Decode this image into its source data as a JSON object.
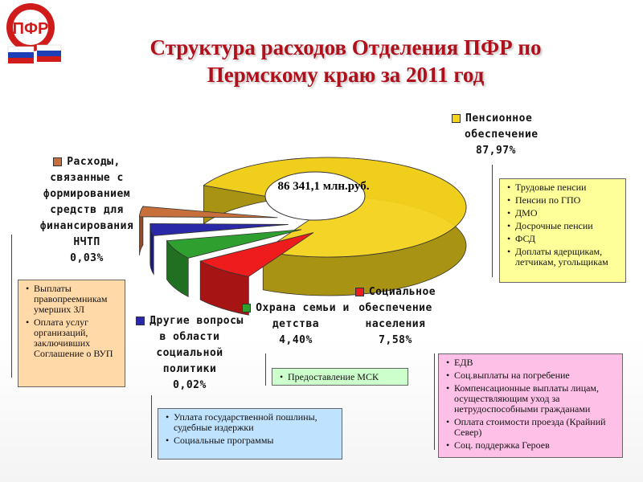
{
  "title": "Структура расходов Отделения ПФР по Пермскому краю за 2011 год",
  "logo_text": "ПФР",
  "chart_data": {
    "type": "pie",
    "total": "86 341,1 млн.руб.",
    "total_value": 86341.1,
    "unit": "млн.руб.",
    "slices": [
      {
        "name": "Пенсионное обеспечение",
        "value": 87.97,
        "value_label": "87,97%",
        "color": "#f2d21b"
      },
      {
        "name": "Социальное обеспечение населения",
        "value": 7.58,
        "value_label": "7,58%",
        "color": "#ee1c1c"
      },
      {
        "name": "Охрана семьи и детства",
        "value": 4.4,
        "value_label": "4,40%",
        "color": "#2f9f2f"
      },
      {
        "name": "Другие вопросы в области социальной политики",
        "value": 0.02,
        "value_label": "0,02%",
        "color": "#2a2aa8"
      },
      {
        "name": "Расходы, связанные с формированием средств для финансирования НЧТП",
        "value": 0.03,
        "value_label": "0,03%",
        "color": "#c8703c"
      }
    ]
  },
  "labels": {
    "pension": [
      "Пенсионное",
      "обеспечение",
      "87,97%"
    ],
    "social": [
      "Социальное",
      "обеспечение",
      "населения",
      "7,58%"
    ],
    "family": [
      "Охрана семьи и",
      "детства",
      "4,40%"
    ],
    "other": [
      "Другие вопросы",
      "в области",
      "социальной",
      "политики",
      "0,02%"
    ],
    "nchtp": [
      "Расходы,",
      "связанные с",
      "формированием",
      "средств для",
      "финансирования",
      "НЧТП",
      "0,03%"
    ]
  },
  "boxes": {
    "pension": [
      "Трудовые пенсии",
      "Пенсии по ГПО",
      "ДМО",
      "Досрочные пенсии",
      "ФСД",
      "Доплаты ядерщикам, летчикам, угольщикам"
    ],
    "social": [
      "ЕДВ",
      "Соц.выплаты на погребение",
      "Компенсационные выплаты лицам, осуществляющим уход за нетрудоспособными гражданами",
      "Оплата стоимости проезда (Крайний Север)",
      "Соц. поддержка Героев"
    ],
    "family": [
      "Предоставление МСК"
    ],
    "other": [
      "Уплата государственной пошлины, судебные издержки",
      "Социальные программы"
    ],
    "nchtp": [
      "Выплаты правопреемникам умерших ЗЛ",
      "Оплата услуг организаций, заключивших Соглашение о ВУП"
    ]
  },
  "colors": {
    "title": "#b0101c",
    "pension_box": "#ffff99",
    "social_box": "#ffc0e8",
    "family_box": "#ccffcc",
    "other_box": "#bfe2ff",
    "nchtp_box": "#ffd9a8"
  }
}
